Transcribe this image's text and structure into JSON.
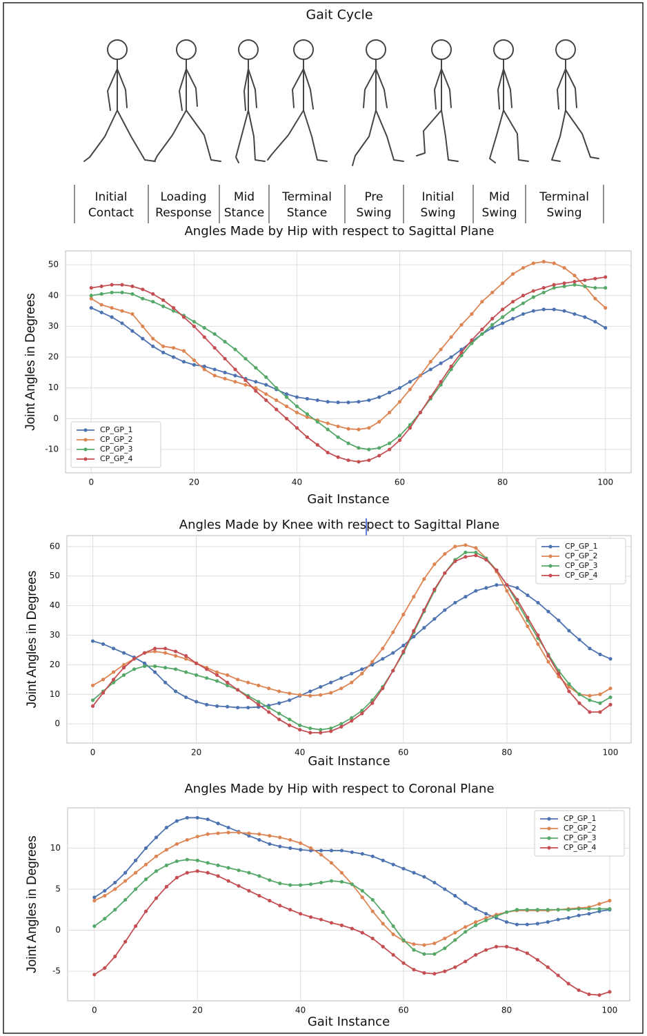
{
  "header": {
    "title": "Gait Cycle",
    "phases": [
      [
        "Initial",
        "Contact"
      ],
      [
        "Loading",
        "Response"
      ],
      [
        "Mid",
        "Stance"
      ],
      [
        "Terminal",
        "Stance"
      ],
      [
        "Pre",
        "Swing"
      ],
      [
        "Initial",
        "Swing"
      ],
      [
        "Mid",
        "Swing"
      ],
      [
        "Terminal",
        "Swing"
      ]
    ]
  },
  "chart_data": [
    {
      "type": "line",
      "title": "Angles Made by Hip with respect to Sagittal Plane",
      "x_label": "Gait Instance",
      "y_label": "Joint Angles in Degrees",
      "x": [
        0,
        2,
        4,
        6,
        8,
        10,
        12,
        14,
        16,
        18,
        20,
        22,
        24,
        26,
        28,
        30,
        32,
        34,
        36,
        38,
        40,
        42,
        44,
        46,
        48,
        50,
        52,
        54,
        56,
        58,
        60,
        62,
        64,
        66,
        68,
        70,
        72,
        74,
        76,
        78,
        80,
        82,
        84,
        86,
        88,
        90,
        92,
        94,
        96,
        98,
        100
      ],
      "xlim": [
        -5,
        105
      ],
      "xticks": [
        0,
        20,
        40,
        60,
        80,
        100
      ],
      "ylim": [
        -17.6,
        54.5
      ],
      "yticks": [
        -10,
        0,
        10,
        20,
        30,
        40,
        50
      ],
      "grid": true,
      "legend": "lower left",
      "series": [
        {
          "name": "CP_GP_1",
          "color": "#4c72b0",
          "values": [
            36,
            34.5,
            33,
            31,
            28.5,
            26,
            23.5,
            21.5,
            20,
            18.5,
            17.5,
            17,
            16,
            15,
            14,
            13,
            12,
            11,
            9.5,
            8,
            7,
            6.5,
            6,
            5.5,
            5.3,
            5.3,
            5.5,
            6,
            7,
            8.5,
            10,
            12,
            14,
            16,
            18,
            20,
            22.5,
            25,
            27.5,
            29.5,
            31,
            32.5,
            34,
            35,
            35.5,
            35.5,
            35,
            34,
            33,
            31.5,
            29.5
          ]
        },
        {
          "name": "CP_GP_2",
          "color": "#dd8452",
          "values": [
            39,
            37,
            36,
            35,
            34,
            30,
            26,
            23.5,
            23,
            22,
            19,
            16,
            14,
            13,
            12,
            11,
            10,
            8,
            6,
            4,
            2,
            0.5,
            -0.5,
            -1.5,
            -2.5,
            -3.3,
            -3.5,
            -3,
            -1,
            2,
            5.5,
            9.5,
            14,
            18.5,
            22.5,
            26.5,
            30.5,
            34,
            38,
            41,
            44,
            47,
            49,
            50.5,
            51,
            50.5,
            49,
            46.5,
            43,
            39,
            36
          ]
        },
        {
          "name": "CP_GP_3",
          "color": "#55a868",
          "values": [
            40,
            40.5,
            41,
            41,
            40.5,
            39,
            38,
            36.5,
            35,
            33.5,
            31.5,
            29.5,
            27.5,
            25,
            22.5,
            19.5,
            16.5,
            13.5,
            10,
            7,
            4,
            1.5,
            -1,
            -3.5,
            -6,
            -8,
            -9.5,
            -10,
            -9.5,
            -8,
            -5.5,
            -2,
            2,
            6.5,
            11,
            16,
            20.5,
            24.5,
            27.5,
            30.5,
            33,
            35.5,
            37.5,
            39.5,
            41,
            42.5,
            43,
            43.5,
            43,
            42.5,
            42.5
          ]
        },
        {
          "name": "CP_GP_4",
          "color": "#c44e52",
          "values": [
            42.5,
            43,
            43.5,
            43.5,
            43,
            42,
            40.5,
            38.5,
            36,
            33,
            30,
            26.5,
            23,
            19.5,
            16,
            12.5,
            9,
            6,
            3,
            0,
            -3,
            -6,
            -8.5,
            -11,
            -12.5,
            -13.5,
            -14,
            -13.5,
            -12,
            -10,
            -7,
            -3,
            2,
            7,
            12,
            17,
            21.5,
            25.5,
            29,
            32.5,
            35.5,
            38,
            40,
            41.5,
            42.5,
            43.5,
            44,
            44.5,
            45,
            45.5,
            46
          ]
        }
      ]
    },
    {
      "type": "line",
      "title": "Angles Made by Knee with respect to Sagittal Plane",
      "x_label": "Gait Instance",
      "y_label": "Joint Angles in Degrees",
      "x": [
        0,
        2,
        4,
        6,
        8,
        10,
        12,
        14,
        16,
        18,
        20,
        22,
        24,
        26,
        28,
        30,
        32,
        34,
        36,
        38,
        40,
        42,
        44,
        46,
        48,
        50,
        52,
        54,
        56,
        58,
        60,
        62,
        64,
        66,
        68,
        70,
        72,
        74,
        76,
        78,
        80,
        82,
        84,
        86,
        88,
        90,
        92,
        94,
        96,
        98,
        100
      ],
      "xlim": [
        -5,
        104
      ],
      "xticks": [
        0,
        20,
        40,
        60,
        80,
        100
      ],
      "ylim": [
        -6.5,
        63.7
      ],
      "yticks": [
        0,
        10,
        20,
        30,
        40,
        50,
        60
      ],
      "grid": true,
      "legend": "upper right",
      "series": [
        {
          "name": "CP_GP_1",
          "color": "#4c72b0",
          "values": [
            28,
            27,
            25.5,
            24,
            22.5,
            20.5,
            17.5,
            14,
            11,
            9,
            7.5,
            6.5,
            6,
            5.8,
            5.5,
            5.5,
            5.7,
            6.2,
            7,
            8,
            9.5,
            11,
            12.5,
            14,
            15.5,
            17,
            18.5,
            20,
            22,
            24,
            26.5,
            29.5,
            32.5,
            35.5,
            38.5,
            41,
            43,
            45,
            46,
            47,
            47,
            46,
            43.5,
            41,
            38,
            35,
            31.5,
            28.5,
            25.5,
            23.5,
            22
          ]
        },
        {
          "name": "CP_GP_2",
          "color": "#dd8452",
          "values": [
            13,
            15,
            17.5,
            20,
            22,
            24,
            24.5,
            24,
            23,
            22,
            20.5,
            19,
            17.5,
            16.5,
            15,
            14,
            13,
            12,
            11,
            10.3,
            9.8,
            9.5,
            9.8,
            10.5,
            12,
            14,
            17,
            21,
            25.5,
            31,
            37,
            43,
            49,
            54,
            57.5,
            60,
            60.5,
            59.5,
            56,
            51.5,
            45,
            39,
            33,
            27,
            21,
            16,
            12.5,
            10,
            9.5,
            10,
            12
          ]
        },
        {
          "name": "CP_GP_3",
          "color": "#55a868",
          "values": [
            8,
            11,
            14,
            16.5,
            18.5,
            19.5,
            19.5,
            19,
            18.5,
            17.5,
            16.5,
            15.5,
            14.5,
            13,
            11.5,
            9.5,
            7.5,
            5.5,
            3.5,
            1.5,
            -0.5,
            -1.5,
            -2,
            -1.5,
            0,
            2,
            4.5,
            8,
            12.5,
            18,
            24,
            31,
            38,
            45,
            51,
            55.5,
            58,
            58,
            56,
            52,
            47,
            41,
            35,
            29,
            23.5,
            18,
            13.5,
            10,
            8,
            7,
            9
          ]
        },
        {
          "name": "CP_GP_4",
          "color": "#c44e52",
          "values": [
            6,
            10.5,
            15,
            19,
            22,
            24,
            25.5,
            25.5,
            24.5,
            23,
            20.5,
            18.5,
            16.5,
            14,
            11.5,
            9,
            6.5,
            4,
            1.5,
            -0.5,
            -2,
            -3,
            -3,
            -2.5,
            -1,
            1,
            3.5,
            7,
            12,
            18,
            24.5,
            31.5,
            38.5,
            45.5,
            51,
            55,
            56.5,
            57,
            55.5,
            52,
            47,
            42,
            36,
            30,
            23,
            17,
            11,
            7,
            4,
            4,
            6.5
          ]
        }
      ]
    },
    {
      "type": "line",
      "title": "Angles Made by Hip with respect to Coronal Plane",
      "x_label": "Gait Instance",
      "y_label": "Joint Angles in Degrees",
      "x": [
        0,
        2,
        4,
        6,
        8,
        10,
        12,
        14,
        16,
        18,
        20,
        22,
        24,
        26,
        28,
        30,
        32,
        34,
        36,
        38,
        40,
        42,
        44,
        46,
        48,
        50,
        52,
        54,
        56,
        58,
        60,
        62,
        64,
        66,
        68,
        70,
        72,
        74,
        76,
        78,
        80,
        82,
        84,
        86,
        88,
        90,
        92,
        94,
        96,
        98,
        100
      ],
      "xlim": [
        -5.2,
        103.9
      ],
      "xticks": [
        0,
        20,
        40,
        60,
        80,
        100
      ],
      "ylim": [
        -8.6,
        14.9
      ],
      "yticks": [
        -5,
        0,
        5,
        10
      ],
      "grid": true,
      "legend": "upper right",
      "series": [
        {
          "name": "CP_GP_1",
          "color": "#4c72b0",
          "values": [
            4,
            4.8,
            5.8,
            7,
            8.5,
            10,
            11.3,
            12.5,
            13.3,
            13.7,
            13.7,
            13.5,
            13,
            12.5,
            12,
            11.5,
            11,
            10.5,
            10.2,
            10,
            9.8,
            9.7,
            9.7,
            9.7,
            9.7,
            9.5,
            9.3,
            9,
            8.5,
            8,
            7.5,
            7,
            6.5,
            5.8,
            5,
            4.2,
            3.3,
            2.6,
            2,
            1.5,
            1,
            0.7,
            0.7,
            0.8,
            1,
            1.3,
            1.5,
            1.8,
            2,
            2.3,
            2.5
          ]
        },
        {
          "name": "CP_GP_2",
          "color": "#dd8452",
          "values": [
            3.6,
            4.2,
            5,
            6,
            7,
            8,
            9,
            9.8,
            10.5,
            11,
            11.4,
            11.7,
            11.8,
            11.9,
            11.9,
            11.8,
            11.7,
            11.5,
            11.3,
            11,
            10.6,
            10,
            9.2,
            8.2,
            7,
            5.6,
            4,
            2.3,
            0.8,
            -0.5,
            -1.3,
            -1.7,
            -1.8,
            -1.6,
            -1,
            -0.3,
            0.4,
            1,
            1.5,
            1.9,
            2.2,
            2.4,
            2.4,
            2.4,
            2.4,
            2.5,
            2.6,
            2.7,
            2.8,
            3.2,
            3.6
          ]
        },
        {
          "name": "CP_GP_3",
          "color": "#55a868",
          "values": [
            0.5,
            1.4,
            2.5,
            3.7,
            5,
            6.2,
            7.2,
            7.9,
            8.4,
            8.6,
            8.5,
            8.2,
            7.9,
            7.6,
            7.3,
            7,
            6.6,
            6.1,
            5.7,
            5.5,
            5.5,
            5.6,
            5.8,
            6,
            5.9,
            5.6,
            4.8,
            3.7,
            2.2,
            0.5,
            -1.2,
            -2.4,
            -2.9,
            -2.9,
            -2.2,
            -1.2,
            -0.2,
            0.6,
            1.2,
            1.7,
            2.2,
            2.5,
            2.5,
            2.5,
            2.5,
            2.5,
            2.5,
            2.6,
            2.6,
            2.6,
            2.6
          ]
        },
        {
          "name": "CP_GP_4",
          "color": "#c44e52",
          "values": [
            -5.4,
            -4.6,
            -3.2,
            -1.4,
            0.5,
            2.3,
            3.9,
            5.3,
            6.4,
            7,
            7.2,
            7,
            6.6,
            6,
            5.4,
            4.8,
            4.2,
            3.6,
            3,
            2.5,
            2,
            1.6,
            1.3,
            0.9,
            0.6,
            0.2,
            -0.3,
            -1,
            -2,
            -3,
            -4,
            -4.8,
            -5.2,
            -5.3,
            -5,
            -4.5,
            -3.8,
            -3,
            -2.4,
            -2,
            -2,
            -2.3,
            -2.8,
            -3.6,
            -4.5,
            -5.5,
            -6.5,
            -7.3,
            -7.8,
            -7.9,
            -7.5
          ]
        }
      ]
    }
  ]
}
